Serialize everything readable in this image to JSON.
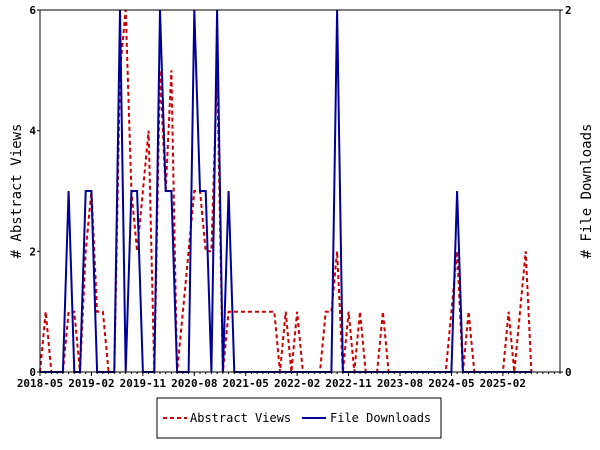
{
  "chart_data": {
    "type": "line",
    "xlabel": "",
    "ylabel": "# Abstract Views",
    "y2label": "# File Downloads",
    "x_ticks": [
      "2018-05",
      "2019-02",
      "2019-11",
      "2020-08",
      "2021-05",
      "2022-02",
      "2022-11",
      "2023-08",
      "2024-05",
      "2025-02"
    ],
    "x_start": "2018-05",
    "x_end": "2025-12",
    "y_ticks": [
      "0",
      "2",
      "4",
      "6"
    ],
    "ylim": [
      0,
      6
    ],
    "y2_ticks": [
      "0",
      "2"
    ],
    "y2lim": [
      0,
      2
    ],
    "legend_position": "bottom",
    "grid": false,
    "series": [
      {
        "name": "Abstract Views",
        "axis": "left",
        "color": "#cc0000",
        "style": "dashed",
        "points": [
          [
            "2018-05",
            0
          ],
          [
            "2018-06",
            1
          ],
          [
            "2018-07",
            0
          ],
          [
            "2018-09",
            0
          ],
          [
            "2018-10",
            1
          ],
          [
            "2018-11",
            1
          ],
          [
            "2018-12",
            0
          ],
          [
            "2019-01",
            2
          ],
          [
            "2019-02",
            3
          ],
          [
            "2019-03",
            1
          ],
          [
            "2019-04",
            1
          ],
          [
            "2019-05",
            0
          ],
          [
            "2019-06",
            0
          ],
          [
            "2019-07",
            5
          ],
          [
            "2019-08",
            6
          ],
          [
            "2019-09",
            3
          ],
          [
            "2019-10",
            2
          ],
          [
            "2019-11",
            3
          ],
          [
            "2019-12",
            4
          ],
          [
            "2020-01",
            0
          ],
          [
            "2020-02",
            5
          ],
          [
            "2020-03",
            3
          ],
          [
            "2020-04",
            5
          ],
          [
            "2020-05",
            0
          ],
          [
            "2020-06",
            1
          ],
          [
            "2020-07",
            2
          ],
          [
            "2020-08",
            3
          ],
          [
            "2020-09",
            3
          ],
          [
            "2020-10",
            2
          ],
          [
            "2020-11",
            2
          ],
          [
            "2020-12",
            5
          ],
          [
            "2021-01",
            0
          ],
          [
            "2021-02",
            1
          ],
          [
            "2021-03",
            1
          ],
          [
            "2021-04",
            1
          ],
          [
            "2021-05",
            1
          ],
          [
            "2021-06",
            1
          ],
          [
            "2021-07",
            1
          ],
          [
            "2021-08",
            1
          ],
          [
            "2021-09",
            1
          ],
          [
            "2021-10",
            1
          ],
          [
            "2021-11",
            0
          ],
          [
            "2021-12",
            1
          ],
          [
            "2022-01",
            0
          ],
          [
            "2022-02",
            1
          ],
          [
            "2022-03",
            0
          ],
          [
            "2022-04",
            0
          ],
          [
            "2022-05",
            0
          ],
          [
            "2022-06",
            0
          ],
          [
            "2022-07",
            1
          ],
          [
            "2022-08",
            1
          ],
          [
            "2022-09",
            2
          ],
          [
            "2022-10",
            0
          ],
          [
            "2022-11",
            1
          ],
          [
            "2022-12",
            0
          ],
          [
            "2023-01",
            1
          ],
          [
            "2023-02",
            0
          ],
          [
            "2023-03",
            0
          ],
          [
            "2023-04",
            0
          ],
          [
            "2023-05",
            1
          ],
          [
            "2023-06",
            0
          ],
          [
            "2023-07",
            0
          ],
          [
            "2023-08",
            0
          ],
          [
            "2023-09",
            0
          ],
          [
            "2023-10",
            0
          ],
          [
            "2023-11",
            0
          ],
          [
            "2023-12",
            0
          ],
          [
            "2024-01",
            0
          ],
          [
            "2024-02",
            0
          ],
          [
            "2024-03",
            0
          ],
          [
            "2024-04",
            0
          ],
          [
            "2024-05",
            1
          ],
          [
            "2024-06",
            2
          ],
          [
            "2024-07",
            0
          ],
          [
            "2024-08",
            1
          ],
          [
            "2024-09",
            0
          ],
          [
            "2024-10",
            0
          ],
          [
            "2024-11",
            0
          ],
          [
            "2024-12",
            0
          ],
          [
            "2025-01",
            0
          ],
          [
            "2025-02",
            0
          ],
          [
            "2025-03",
            1
          ],
          [
            "2025-04",
            0
          ],
          [
            "2025-05",
            1
          ],
          [
            "2025-06",
            2
          ],
          [
            "2025-07",
            0
          ]
        ]
      },
      {
        "name": "File Downloads",
        "axis": "right",
        "color": "#000099",
        "style": "solid",
        "points": [
          [
            "2018-05",
            0
          ],
          [
            "2018-06",
            0
          ],
          [
            "2018-07",
            0
          ],
          [
            "2018-08",
            0
          ],
          [
            "2018-09",
            0
          ],
          [
            "2018-10",
            1
          ],
          [
            "2018-11",
            0
          ],
          [
            "2018-12",
            0
          ],
          [
            "2019-01",
            1
          ],
          [
            "2019-02",
            1
          ],
          [
            "2019-03",
            0
          ],
          [
            "2019-04",
            0
          ],
          [
            "2019-05",
            0
          ],
          [
            "2019-06",
            0
          ],
          [
            "2019-07",
            2
          ],
          [
            "2019-08",
            0
          ],
          [
            "2019-09",
            1
          ],
          [
            "2019-10",
            1
          ],
          [
            "2019-11",
            0
          ],
          [
            "2019-12",
            0
          ],
          [
            "2020-01",
            0
          ],
          [
            "2020-02",
            2
          ],
          [
            "2020-03",
            1
          ],
          [
            "2020-04",
            1
          ],
          [
            "2020-05",
            0
          ],
          [
            "2020-06",
            0
          ],
          [
            "2020-07",
            0
          ],
          [
            "2020-08",
            2
          ],
          [
            "2020-09",
            1
          ],
          [
            "2020-10",
            1
          ],
          [
            "2020-11",
            0
          ],
          [
            "2020-12",
            2
          ],
          [
            "2021-01",
            0
          ],
          [
            "2021-02",
            1
          ],
          [
            "2021-03",
            0
          ],
          [
            "2021-04",
            0
          ],
          [
            "2021-05",
            0
          ],
          [
            "2021-06",
            0
          ],
          [
            "2021-07",
            0
          ],
          [
            "2021-08",
            0
          ],
          [
            "2021-09",
            0
          ],
          [
            "2021-10",
            0
          ],
          [
            "2021-11",
            0
          ],
          [
            "2021-12",
            0
          ],
          [
            "2022-01",
            0
          ],
          [
            "2022-02",
            0
          ],
          [
            "2022-03",
            0
          ],
          [
            "2022-04",
            0
          ],
          [
            "2022-05",
            0
          ],
          [
            "2022-06",
            0
          ],
          [
            "2022-07",
            0
          ],
          [
            "2022-08",
            0
          ],
          [
            "2022-09",
            2
          ],
          [
            "2022-10",
            0
          ],
          [
            "2022-11",
            0
          ],
          [
            "2022-12",
            0
          ],
          [
            "2023-01",
            0
          ],
          [
            "2023-02",
            0
          ],
          [
            "2023-03",
            0
          ],
          [
            "2023-04",
            0
          ],
          [
            "2023-05",
            0
          ],
          [
            "2023-06",
            0
          ],
          [
            "2023-07",
            0
          ],
          [
            "2023-08",
            0
          ],
          [
            "2023-09",
            0
          ],
          [
            "2023-10",
            0
          ],
          [
            "2023-11",
            0
          ],
          [
            "2023-12",
            0
          ],
          [
            "2024-01",
            0
          ],
          [
            "2024-02",
            0
          ],
          [
            "2024-03",
            0
          ],
          [
            "2024-04",
            0
          ],
          [
            "2024-05",
            0
          ],
          [
            "2024-06",
            1
          ],
          [
            "2024-07",
            0
          ],
          [
            "2024-08",
            0
          ],
          [
            "2024-09",
            0
          ],
          [
            "2024-10",
            0
          ],
          [
            "2024-11",
            0
          ],
          [
            "2024-12",
            0
          ],
          [
            "2025-01",
            0
          ],
          [
            "2025-02",
            0
          ],
          [
            "2025-03",
            0
          ],
          [
            "2025-04",
            0
          ],
          [
            "2025-05",
            0
          ],
          [
            "2025-06",
            0
          ],
          [
            "2025-07",
            0
          ]
        ]
      }
    ]
  }
}
